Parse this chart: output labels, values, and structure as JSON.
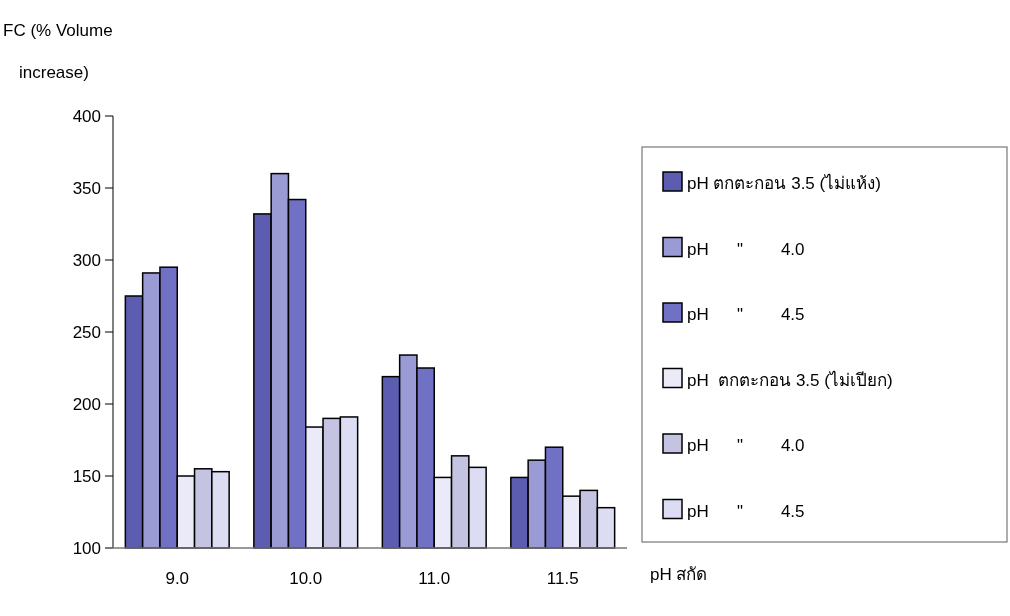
{
  "chart_data": {
    "type": "bar",
    "ylabel": "FC (% Volume increase)",
    "xlabel": "pH สกัด",
    "categories": [
      "9.0",
      "10.0",
      "11.0",
      "11.5"
    ],
    "series": [
      {
        "name": "pH ตกตะกอน 3.5 (ไม่แห้ง)",
        "color": "#5c5cb0",
        "values": [
          275,
          332,
          219,
          149
        ]
      },
      {
        "name": "pH      \"        4.0",
        "color": "#9a9ad4",
        "values": [
          291,
          360,
          234,
          161
        ]
      },
      {
        "name": "pH      \"        4.5",
        "color": "#7070c4",
        "values": [
          295,
          342,
          225,
          170
        ]
      },
      {
        "name": "pH  ตกตะกอน 3.5 (ไม่เปียก)",
        "color": "#eaeaf8",
        "values": [
          150,
          184,
          149,
          136
        ]
      },
      {
        "name": "pH      \"        4.0",
        "color": "#c4c4e2",
        "values": [
          155,
          190,
          164,
          140
        ]
      },
      {
        "name": "pH      \"        4.5",
        "color": "#dcdcf2",
        "values": [
          153,
          191,
          156,
          128
        ]
      }
    ],
    "ylim": [
      100,
      400
    ],
    "yticks": [
      100,
      150,
      200,
      250,
      300,
      350,
      400
    ],
    "legend": "right"
  }
}
